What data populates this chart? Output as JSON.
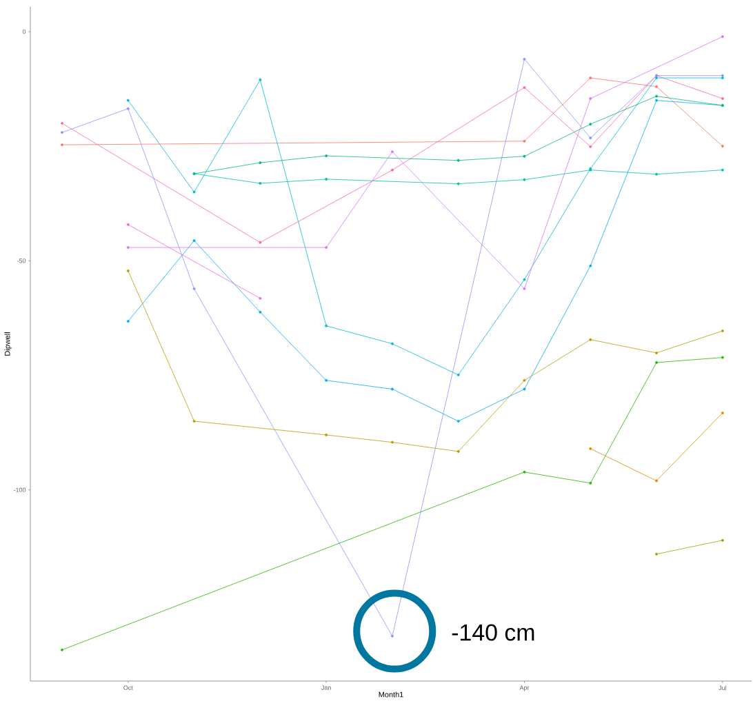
{
  "chart_data": {
    "type": "line",
    "xlabel": "Month1",
    "ylabel": "Dipwell",
    "categories": [
      null,
      "Oct",
      null,
      null,
      "Jan",
      null,
      null,
      "Apr",
      null,
      null,
      "Jul"
    ],
    "ylim": [
      -141.7,
      5.4
    ],
    "yticks": [
      -100,
      -50,
      0
    ],
    "marker": "circle",
    "annotations": [
      "-140 cm"
    ],
    "series": [
      {
        "color": "#f8766d",
        "values": [
          -24.7,
          null,
          null,
          null,
          null,
          null,
          null,
          -23.9,
          -10.1,
          -12.0,
          -25.0
        ]
      },
      {
        "color": "#ff65ac",
        "values": [
          -20.0,
          null,
          null,
          -46.0,
          null,
          -30.2,
          null,
          -12.2,
          -25.1,
          -9.6,
          -14.6
        ]
      },
      {
        "color": "#8b93ff",
        "values": [
          -22.0,
          -16.8,
          -56.1,
          null,
          null,
          -131.9,
          null,
          -6.0,
          -23.2,
          -9.6,
          -9.6
        ]
      },
      {
        "color": "#00bbda",
        "values": [
          null,
          -15.0,
          -35.0,
          -10.5,
          -64.2,
          -68.1,
          -74.9,
          -54.1,
          -29.9,
          -10.1,
          -10.1
        ]
      },
      {
        "color": "#00acfc",
        "values": [
          null,
          -63.2,
          -45.6,
          -61.2,
          -76.1,
          -78.0,
          -85.0,
          -78.0,
          -51.1,
          -15.0,
          -16.1
        ]
      },
      {
        "color": "#00be70",
        "values": [
          null,
          null,
          -31.0,
          -28.6,
          -27.1,
          null,
          -28.1,
          -27.2,
          -20.2,
          -14.1,
          -16.1
        ]
      },
      {
        "color": "#00c1ab",
        "values": [
          null,
          null,
          -31.0,
          -33.1,
          -32.2,
          null,
          -33.2,
          -32.3,
          -30.2,
          -31.1,
          -30.2
        ]
      },
      {
        "color": "#f962dd",
        "values": [
          null,
          -42.1,
          null,
          -58.2,
          null,
          null,
          null,
          null,
          null,
          null,
          null
        ]
      },
      {
        "color": "#d575fe",
        "values": [
          null,
          -47.1,
          null,
          null,
          -47.1,
          -26.2,
          null,
          -56.1,
          -14.6,
          null,
          -1.1
        ]
      },
      {
        "color": "#be9c00",
        "values": [
          null,
          -52.2,
          -85.0,
          null,
          -88.0,
          -89.6,
          -91.6,
          -76.1,
          -67.2,
          -70.1,
          -65.3
        ]
      },
      {
        "color": "#24b700",
        "values": [
          -134.9,
          null,
          null,
          null,
          null,
          null,
          null,
          -96.1,
          -98.5,
          -72.2,
          -71.1
        ]
      },
      {
        "color": "#e18a00",
        "values": [
          null,
          null,
          null,
          null,
          null,
          null,
          null,
          null,
          -91.0,
          -98.0,
          -83.2
        ]
      },
      {
        "color": "#8cab00",
        "values": [
          null,
          null,
          null,
          null,
          null,
          null,
          null,
          null,
          null,
          -114.0,
          -111.0
        ]
      }
    ]
  }
}
